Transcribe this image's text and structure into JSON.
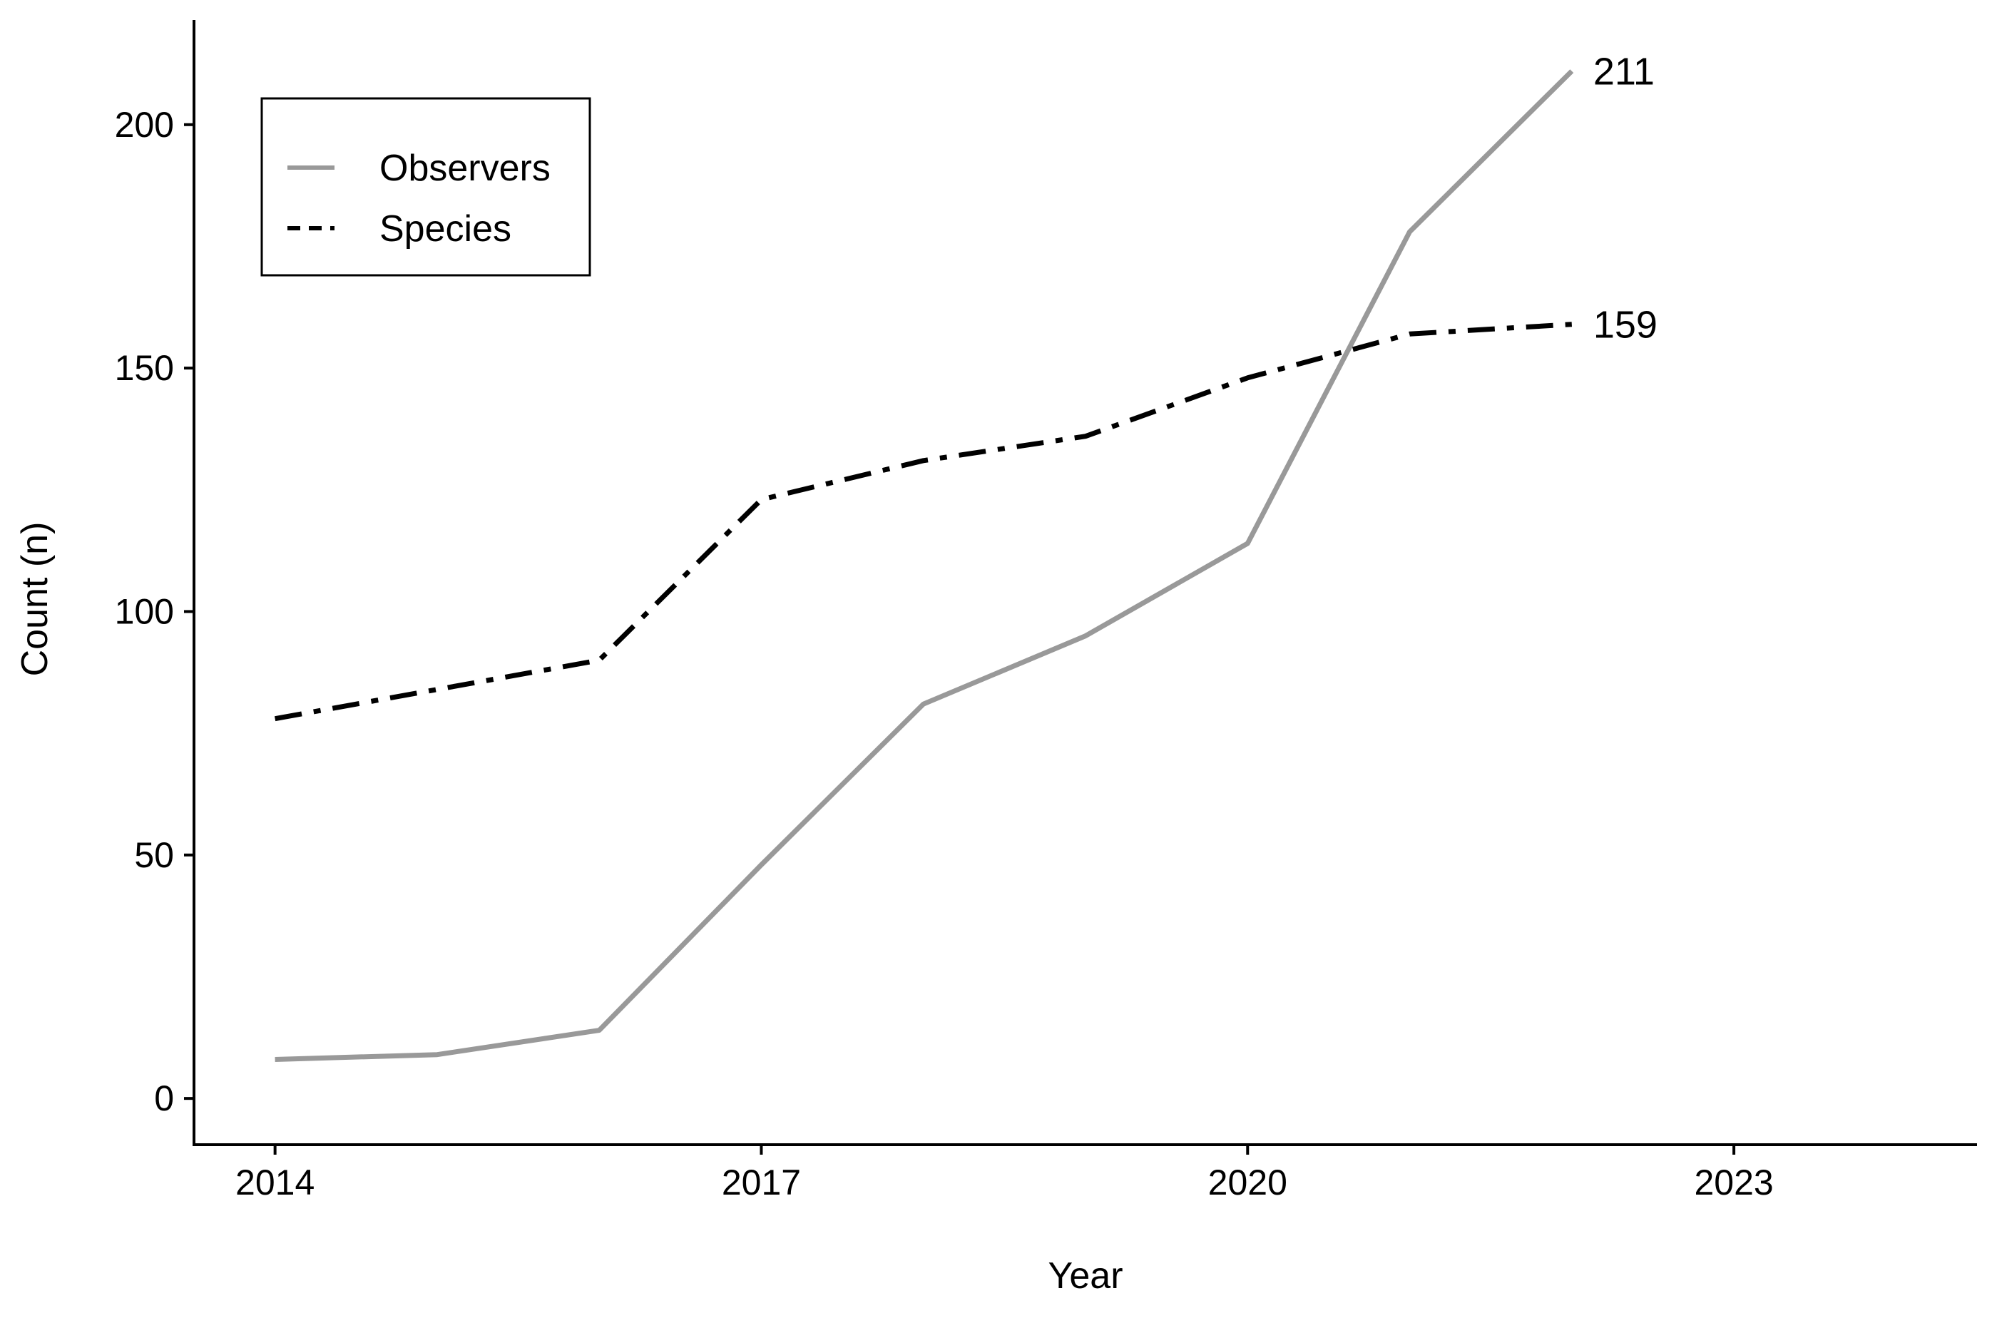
{
  "chart_data": {
    "type": "line",
    "title": "",
    "xlabel": "Year",
    "ylabel": "Count (n)",
    "xlim": [
      2013.5,
      2024.5
    ],
    "ylim": [
      -9.5,
      221.5
    ],
    "x_ticks": [
      2014,
      2017,
      2020,
      2023
    ],
    "y_ticks": [
      0,
      50,
      100,
      150,
      200
    ],
    "x": [
      2014,
      2015,
      2016,
      2017,
      2018,
      2019,
      2020,
      2021,
      2022
    ],
    "series": [
      {
        "name": "Observers",
        "color": "#999999",
        "style": "solid",
        "values": [
          8,
          9,
          14,
          48,
          81,
          95,
          114,
          178,
          211
        ],
        "end_label": "211"
      },
      {
        "name": "Species",
        "color": "#000000",
        "style": "dashdot",
        "values": [
          78,
          84,
          90,
          123,
          131,
          136,
          148,
          157,
          159
        ],
        "end_label": "159"
      }
    ],
    "legend": {
      "position": "top-left",
      "entries": [
        "Observers",
        "Species"
      ]
    },
    "grid": false
  }
}
